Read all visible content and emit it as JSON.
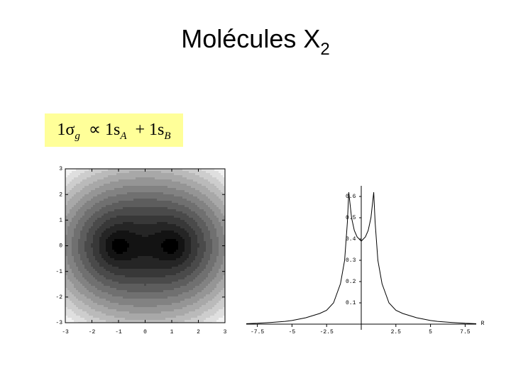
{
  "title": {
    "text": "Molécules X",
    "subscript": "2"
  },
  "formula": {
    "parts": [
      {
        "text": "1σ",
        "sub": "g"
      },
      {
        "text": "∝ 1s",
        "sub": "A"
      },
      {
        "text": "+ 1s",
        "sub": "B"
      }
    ]
  },
  "chart_data": [
    {
      "type": "density",
      "nuclei": {
        "x": [
          -1,
          1
        ],
        "y": [
          0,
          0
        ]
      },
      "xlim": [
        -3,
        3
      ],
      "ylim": [
        -3,
        3
      ],
      "xticks": [
        -3,
        -2,
        -1,
        0,
        1,
        2,
        3
      ],
      "yticks": [
        -3,
        -2,
        -1,
        0,
        1,
        2,
        3
      ],
      "color": "#000000"
    },
    {
      "type": "line",
      "xlabel": "R",
      "x": [
        -8.3,
        -7.5,
        -6.5,
        -5.5,
        -5,
        -4,
        -3,
        -2.5,
        -2,
        -1.5,
        -1.2,
        -1,
        -0.9,
        -0.7,
        -0.5,
        -0.3,
        0,
        0.3,
        0.5,
        0.7,
        0.9,
        1,
        1.2,
        1.5,
        2,
        2.5,
        3,
        4,
        5,
        5.5,
        6.5,
        7.5,
        8.3
      ],
      "series": [
        {
          "name": null,
          "color": "#000000",
          "values": [
            0.002,
            0.004,
            0.008,
            0.013,
            0.017,
            0.03,
            0.05,
            0.065,
            0.1,
            0.19,
            0.3,
            0.48,
            0.62,
            0.5,
            0.44,
            0.41,
            0.39,
            0.41,
            0.44,
            0.5,
            0.62,
            0.48,
            0.3,
            0.19,
            0.1,
            0.065,
            0.05,
            0.03,
            0.017,
            0.013,
            0.008,
            0.004,
            0.002
          ]
        }
      ],
      "xlim": [
        -8.3,
        8.3
      ],
      "ylim": [
        0,
        0.65
      ],
      "xticks": [
        -7.5,
        -5,
        -2.5,
        2.5,
        5,
        7.5
      ],
      "yticks": [
        0.1,
        0.2,
        0.3,
        0.4,
        0.5,
        0.6
      ]
    }
  ]
}
